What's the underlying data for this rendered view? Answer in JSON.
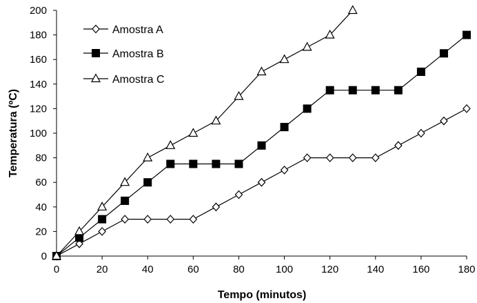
{
  "chart_data": {
    "type": "line",
    "title": "",
    "xlabel": "Tempo (minutos)",
    "ylabel": "Temperatura (ºC)",
    "xlim": [
      0,
      180
    ],
    "ylim": [
      0,
      200
    ],
    "xticks": [
      0,
      20,
      40,
      60,
      80,
      100,
      120,
      140,
      160,
      180
    ],
    "yticks": [
      0,
      20,
      40,
      60,
      80,
      100,
      120,
      140,
      160,
      180,
      200
    ],
    "grid": false,
    "legend_position": "top-left",
    "series": [
      {
        "name": "Amostra A",
        "marker": "diamond-open",
        "color": "#000000",
        "x": [
          0,
          10,
          20,
          30,
          40,
          50,
          60,
          70,
          80,
          90,
          100,
          110,
          120,
          130,
          140,
          150,
          160,
          170,
          180
        ],
        "y": [
          0,
          10,
          20,
          30,
          30,
          30,
          30,
          40,
          50,
          60,
          70,
          80,
          80,
          80,
          80,
          90,
          100,
          110,
          120
        ]
      },
      {
        "name": "Amostra B",
        "marker": "square-filled",
        "color": "#000000",
        "x": [
          0,
          10,
          20,
          30,
          40,
          50,
          60,
          70,
          80,
          90,
          100,
          110,
          120,
          130,
          140,
          150,
          160,
          170,
          180
        ],
        "y": [
          0,
          15,
          30,
          45,
          60,
          75,
          75,
          75,
          75,
          90,
          105,
          120,
          135,
          135,
          135,
          135,
          150,
          165,
          180
        ]
      },
      {
        "name": "Amostra C",
        "marker": "triangle-open",
        "color": "#000000",
        "x": [
          0,
          10,
          20,
          30,
          40,
          50,
          60,
          70,
          80,
          90,
          100,
          110,
          120,
          130
        ],
        "y": [
          0,
          20,
          40,
          60,
          80,
          90,
          100,
          110,
          130,
          150,
          160,
          170,
          180,
          200
        ]
      }
    ]
  }
}
